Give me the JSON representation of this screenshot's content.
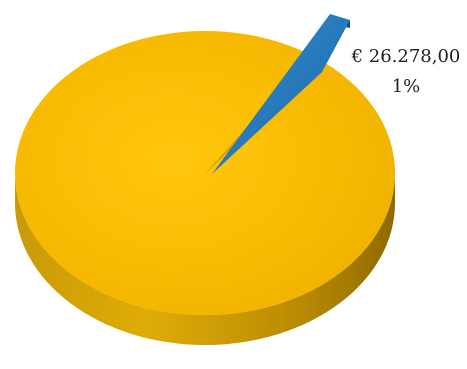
{
  "chart_data": {
    "type": "pie",
    "title": "",
    "slices": [
      {
        "value_label": "",
        "percent_label": "",
        "percent": 99,
        "color": "#F5B800"
      },
      {
        "value_label": "€ 26.278,00",
        "percent_label": "1%",
        "percent": 1,
        "color": "#1F77B4"
      }
    ],
    "legend": "none",
    "style": "3d-exploded"
  }
}
